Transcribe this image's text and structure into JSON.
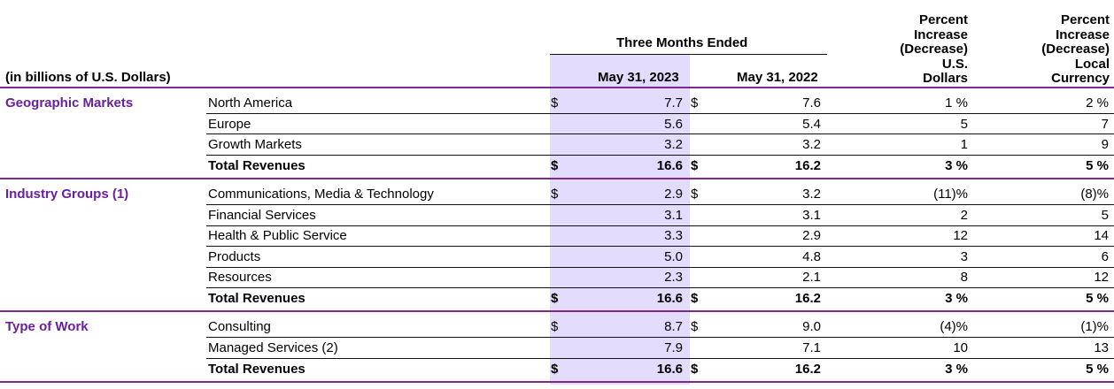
{
  "header": {
    "units": "(in billions of U.S. Dollars)",
    "three_months": "Three Months Ended",
    "col_2023": "May 31, 2023",
    "col_2022": "May 31, 2022",
    "pct_usd": [
      "Percent",
      "Increase",
      "(Decrease)",
      "U.S.",
      "Dollars"
    ],
    "pct_local": [
      "Percent",
      "Increase",
      "(Decrease)",
      "Local",
      "Currency"
    ]
  },
  "sections": [
    {
      "name": "Geographic Markets",
      "rows": [
        {
          "label": "North America",
          "d1": "$",
          "v2023": "7.7",
          "d2": "$",
          "v2022": "7.6",
          "usd": "1 %",
          "local": "2 %"
        },
        {
          "label": "Europe",
          "d1": "",
          "v2023": "5.6",
          "d2": "",
          "v2022": "5.4",
          "usd": "5",
          "local": "7"
        },
        {
          "label": "Growth Markets",
          "d1": "",
          "v2023": "3.2",
          "d2": "",
          "v2022": "3.2",
          "usd": "1",
          "local": "9"
        },
        {
          "label": "Total Revenues",
          "d1": "$",
          "v2023": "16.6",
          "d2": "$",
          "v2022": "16.2",
          "usd": "3 %",
          "local": "5 %",
          "total": true
        }
      ]
    },
    {
      "name": "Industry Groups (1)",
      "rows": [
        {
          "label": "Communications, Media & Technology",
          "d1": "$",
          "v2023": "2.9",
          "d2": "$",
          "v2022": "3.2",
          "usd": "(11)%",
          "local": "(8)%"
        },
        {
          "label": "Financial Services",
          "d1": "",
          "v2023": "3.1",
          "d2": "",
          "v2022": "3.1",
          "usd": "2",
          "local": "5"
        },
        {
          "label": "Health & Public Service",
          "d1": "",
          "v2023": "3.3",
          "d2": "",
          "v2022": "2.9",
          "usd": "12",
          "local": "14"
        },
        {
          "label": "Products",
          "d1": "",
          "v2023": "5.0",
          "d2": "",
          "v2022": "4.8",
          "usd": "3",
          "local": "6"
        },
        {
          "label": "Resources",
          "d1": "",
          "v2023": "2.3",
          "d2": "",
          "v2022": "2.1",
          "usd": "8",
          "local": "12"
        },
        {
          "label": "Total Revenues",
          "d1": "$",
          "v2023": "16.6",
          "d2": "$",
          "v2022": "16.2",
          "usd": "3 %",
          "local": "5 %",
          "total": true
        }
      ]
    },
    {
      "name": "Type of Work",
      "rows": [
        {
          "label": "Consulting",
          "d1": "$",
          "v2023": "8.7",
          "d2": "$",
          "v2022": "9.0",
          "usd": "(4)%",
          "local": "(1)%"
        },
        {
          "label": "Managed Services (2)",
          "d1": "",
          "v2023": "7.9",
          "d2": "",
          "v2022": "7.1",
          "usd": "10",
          "local": "13"
        },
        {
          "label": "Total Revenues",
          "d1": "$",
          "v2023": "16.6",
          "d2": "$",
          "v2022": "16.2",
          "usd": "3 %",
          "local": "5 %",
          "total": true
        }
      ]
    }
  ]
}
